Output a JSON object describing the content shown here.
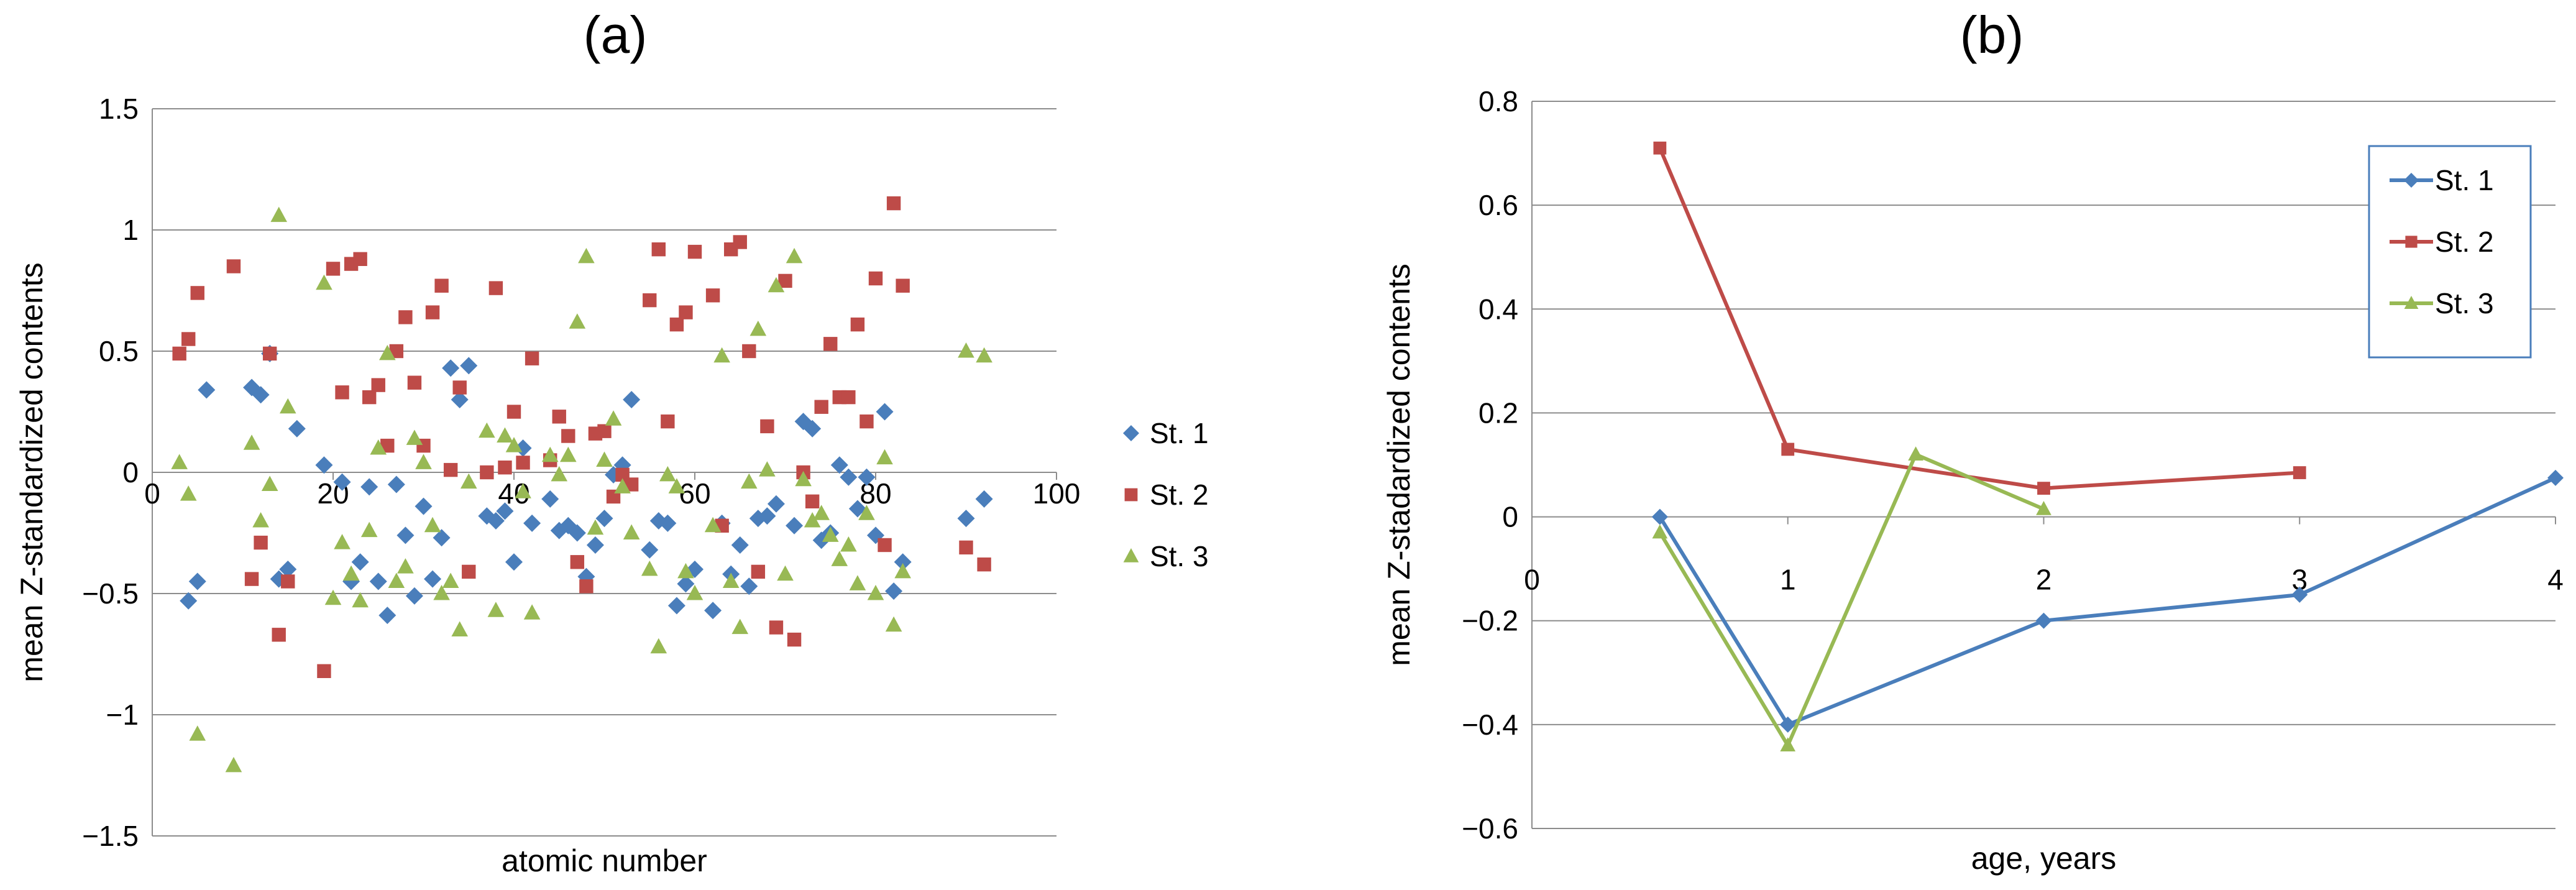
{
  "chart_data": [
    {
      "type": "scatter",
      "title": "(a)",
      "xlabel": "atomic number",
      "ylabel": "mean Z-standardized contents",
      "xlim": [
        0,
        100
      ],
      "ylim": [
        -1.5,
        1.5
      ],
      "xticks": [
        "0",
        "20",
        "40",
        "60",
        "80",
        "100"
      ],
      "yticks": [
        "-1.5",
        "-1",
        "-0.5",
        "0",
        "0.5",
        "1",
        "1.5"
      ],
      "legend": "right",
      "grid": "horizontal",
      "series": [
        {
          "name": "St. 1",
          "color": "#4a7ebb",
          "marker": "diamond",
          "points": [
            [
              4,
              -0.53
            ],
            [
              5,
              -0.45
            ],
            [
              6,
              0.34
            ],
            [
              11,
              0.35
            ],
            [
              12,
              0.32
            ],
            [
              13,
              0.49
            ],
            [
              14,
              -0.44
            ],
            [
              15,
              -0.4
            ],
            [
              16,
              0.18
            ],
            [
              19,
              0.03
            ],
            [
              21,
              -0.04
            ],
            [
              22,
              -0.45
            ],
            [
              23,
              -0.37
            ],
            [
              24,
              -0.06
            ],
            [
              25,
              -0.45
            ],
            [
              26,
              -0.59
            ],
            [
              27,
              -0.05
            ],
            [
              28,
              -0.26
            ],
            [
              29,
              -0.51
            ],
            [
              30,
              -0.14
            ],
            [
              31,
              -0.44
            ],
            [
              32,
              -0.27
            ],
            [
              33,
              0.43
            ],
            [
              34,
              0.3
            ],
            [
              35,
              0.44
            ],
            [
              37,
              -0.18
            ],
            [
              38,
              -0.2
            ],
            [
              39,
              -0.16
            ],
            [
              40,
              -0.37
            ],
            [
              41,
              0.1
            ],
            [
              42,
              -0.21
            ],
            [
              44,
              -0.11
            ],
            [
              45,
              -0.24
            ],
            [
              46,
              -0.22
            ],
            [
              47,
              -0.25
            ],
            [
              48,
              -0.43
            ],
            [
              49,
              -0.3
            ],
            [
              50,
              -0.19
            ],
            [
              51,
              -0.01
            ],
            [
              52,
              0.03
            ],
            [
              53,
              0.3
            ],
            [
              55,
              -0.32
            ],
            [
              56,
              -0.2
            ],
            [
              57,
              -0.21
            ],
            [
              58,
              -0.55
            ],
            [
              59,
              -0.46
            ],
            [
              60,
              -0.4
            ],
            [
              62,
              -0.57
            ],
            [
              63,
              -0.21
            ],
            [
              64,
              -0.42
            ],
            [
              65,
              -0.3
            ],
            [
              66,
              -0.47
            ],
            [
              67,
              -0.19
            ],
            [
              68,
              -0.18
            ],
            [
              69,
              -0.13
            ],
            [
              71,
              -0.22
            ],
            [
              72,
              0.21
            ],
            [
              73,
              0.18
            ],
            [
              74,
              -0.28
            ],
            [
              75,
              -0.25
            ],
            [
              76,
              0.03
            ],
            [
              77,
              -0.02
            ],
            [
              78,
              -0.15
            ],
            [
              79,
              -0.02
            ],
            [
              80,
              -0.26
            ],
            [
              81,
              0.25
            ],
            [
              82,
              -0.49
            ],
            [
              83,
              -0.37
            ],
            [
              90,
              -0.19
            ],
            [
              92,
              -0.11
            ]
          ]
        },
        {
          "name": "St. 2",
          "color": "#be4b48",
          "marker": "square",
          "points": [
            [
              3,
              0.49
            ],
            [
              4,
              0.55
            ],
            [
              5,
              0.74
            ],
            [
              9,
              0.85
            ],
            [
              11,
              -0.44
            ],
            [
              12,
              -0.29
            ],
            [
              13,
              0.49
            ],
            [
              14,
              -0.67
            ],
            [
              15,
              -0.45
            ],
            [
              19,
              -0.82
            ],
            [
              20,
              0.84
            ],
            [
              21,
              0.33
            ],
            [
              22,
              0.86
            ],
            [
              23,
              0.88
            ],
            [
              24,
              0.31
            ],
            [
              25,
              0.36
            ],
            [
              26,
              0.11
            ],
            [
              27,
              0.5
            ],
            [
              28,
              0.64
            ],
            [
              29,
              0.37
            ],
            [
              30,
              0.11
            ],
            [
              31,
              0.66
            ],
            [
              32,
              0.77
            ],
            [
              33,
              0.01
            ],
            [
              34,
              0.35
            ],
            [
              35,
              -0.41
            ],
            [
              37,
              0.0
            ],
            [
              38,
              0.76
            ],
            [
              39,
              0.02
            ],
            [
              40,
              0.25
            ],
            [
              41,
              0.04
            ],
            [
              42,
              0.47
            ],
            [
              44,
              0.05
            ],
            [
              45,
              0.23
            ],
            [
              46,
              0.15
            ],
            [
              47,
              -0.37
            ],
            [
              48,
              -0.47
            ],
            [
              49,
              0.16
            ],
            [
              50,
              0.17
            ],
            [
              51,
              -0.1
            ],
            [
              52,
              -0.01
            ],
            [
              53,
              -0.05
            ],
            [
              55,
              0.71
            ],
            [
              56,
              0.92
            ],
            [
              57,
              0.21
            ],
            [
              58,
              0.61
            ],
            [
              59,
              0.66
            ],
            [
              60,
              0.91
            ],
            [
              62,
              0.73
            ],
            [
              63,
              -0.22
            ],
            [
              64,
              0.92
            ],
            [
              65,
              0.95
            ],
            [
              66,
              0.5
            ],
            [
              67,
              -0.41
            ],
            [
              68,
              0.19
            ],
            [
              69,
              -0.64
            ],
            [
              70,
              0.79
            ],
            [
              71,
              -0.69
            ],
            [
              72,
              0.0
            ],
            [
              73,
              -0.12
            ],
            [
              74,
              0.27
            ],
            [
              75,
              0.53
            ],
            [
              76,
              0.31
            ],
            [
              77,
              0.31
            ],
            [
              78,
              0.61
            ],
            [
              79,
              0.21
            ],
            [
              80,
              0.8
            ],
            [
              81,
              -0.3
            ],
            [
              82,
              1.11
            ],
            [
              83,
              0.77
            ],
            [
              90,
              -0.31
            ],
            [
              92,
              -0.38
            ]
          ]
        },
        {
          "name": "St. 3",
          "color": "#98b954",
          "marker": "triangle",
          "points": [
            [
              3,
              0.04
            ],
            [
              4,
              -0.09
            ],
            [
              5,
              -1.08
            ],
            [
              9,
              -1.21
            ],
            [
              11,
              0.12
            ],
            [
              12,
              -0.2
            ],
            [
              13,
              -0.05
            ],
            [
              14,
              1.06
            ],
            [
              15,
              0.27
            ],
            [
              19,
              0.78
            ],
            [
              20,
              -0.52
            ],
            [
              21,
              -0.29
            ],
            [
              22,
              -0.42
            ],
            [
              23,
              -0.53
            ],
            [
              24,
              -0.24
            ],
            [
              25,
              0.1
            ],
            [
              26,
              0.49
            ],
            [
              27,
              -0.45
            ],
            [
              28,
              -0.39
            ],
            [
              29,
              0.14
            ],
            [
              30,
              0.04
            ],
            [
              31,
              -0.22
            ],
            [
              32,
              -0.5
            ],
            [
              33,
              -0.45
            ],
            [
              34,
              -0.65
            ],
            [
              35,
              -0.04
            ],
            [
              37,
              0.17
            ],
            [
              38,
              -0.57
            ],
            [
              39,
              0.15
            ],
            [
              40,
              0.11
            ],
            [
              41,
              -0.08
            ],
            [
              42,
              -0.58
            ],
            [
              44,
              0.07
            ],
            [
              45,
              -0.01
            ],
            [
              46,
              0.07
            ],
            [
              47,
              0.62
            ],
            [
              48,
              0.89
            ],
            [
              49,
              -0.23
            ],
            [
              50,
              0.05
            ],
            [
              51,
              0.22
            ],
            [
              52,
              -0.06
            ],
            [
              53,
              -0.25
            ],
            [
              55,
              -0.4
            ],
            [
              56,
              -0.72
            ],
            [
              57,
              -0.01
            ],
            [
              58,
              -0.06
            ],
            [
              59,
              -0.41
            ],
            [
              60,
              -0.5
            ],
            [
              62,
              -0.22
            ],
            [
              63,
              0.48
            ],
            [
              64,
              -0.45
            ],
            [
              65,
              -0.64
            ],
            [
              66,
              -0.04
            ],
            [
              67,
              0.59
            ],
            [
              68,
              0.01
            ],
            [
              69,
              0.77
            ],
            [
              70,
              -0.42
            ],
            [
              71,
              0.89
            ],
            [
              72,
              -0.03
            ],
            [
              73,
              -0.2
            ],
            [
              74,
              -0.17
            ],
            [
              75,
              -0.26
            ],
            [
              76,
              -0.36
            ],
            [
              77,
              -0.3
            ],
            [
              78,
              -0.46
            ],
            [
              79,
              -0.17
            ],
            [
              80,
              -0.5
            ],
            [
              81,
              0.06
            ],
            [
              82,
              -0.63
            ],
            [
              83,
              -0.41
            ],
            [
              90,
              0.5
            ],
            [
              92,
              0.48
            ]
          ]
        }
      ]
    },
    {
      "type": "line",
      "title": "(b)",
      "xlabel": "age, years",
      "ylabel": "mean Z-stadardized contents",
      "xlim": [
        0,
        4
      ],
      "ylim": [
        -0.6,
        0.8
      ],
      "xticks": [
        "0",
        "1",
        "2",
        "3",
        "4"
      ],
      "yticks": [
        "-0.6",
        "-0.4",
        "-0.2",
        "0",
        "0.2",
        "0.4",
        "0.6",
        "0.8"
      ],
      "legend": "top-right",
      "grid": "horizontal",
      "series": [
        {
          "name": "St. 1",
          "color": "#4a7ebb",
          "marker": "diamond",
          "points": [
            [
              0.5,
              0.0
            ],
            [
              1,
              -0.4
            ],
            [
              2,
              -0.2
            ],
            [
              3,
              -0.15
            ],
            [
              4,
              0.075
            ]
          ]
        },
        {
          "name": "St. 2",
          "color": "#be4b48",
          "marker": "square",
          "points": [
            [
              0.5,
              0.71
            ],
            [
              1,
              0.13
            ],
            [
              2,
              0.055
            ],
            [
              3,
              0.085
            ]
          ]
        },
        {
          "name": "St. 3",
          "color": "#98b954",
          "marker": "triangle",
          "points": [
            [
              0.5,
              -0.03
            ],
            [
              1,
              -0.44
            ],
            [
              1.5,
              0.12
            ],
            [
              2,
              0.015
            ]
          ]
        }
      ]
    }
  ]
}
